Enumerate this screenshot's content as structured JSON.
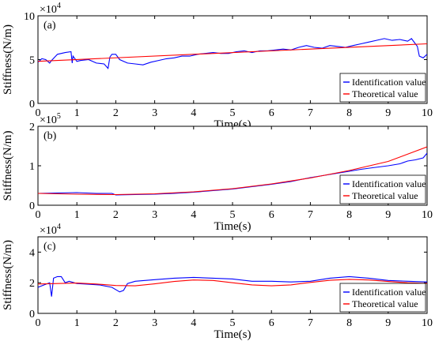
{
  "chart_data": [
    {
      "type": "line",
      "panel_label": "(a)",
      "xlabel": "Time(s)",
      "ylabel": "Stiffness(N/m)",
      "exponent_label": "×10",
      "exponent_power": "4",
      "xlim": [
        0,
        10
      ],
      "ylim": [
        0,
        10
      ],
      "x_ticks": [
        "0",
        "1",
        "2",
        "3",
        "4",
        "5",
        "6",
        "7",
        "8",
        "9",
        "10"
      ],
      "y_ticks": [
        "0",
        "5",
        "10"
      ],
      "y_tick_values": [
        0,
        5,
        10
      ],
      "legend": {
        "placement": "bottom-right"
      },
      "series": [
        {
          "name": "Identification value",
          "color": "#0000ff",
          "x": [
            0,
            0.1,
            0.2,
            0.3,
            0.35,
            0.5,
            0.7,
            0.85,
            0.88,
            0.9,
            1.0,
            1.1,
            1.3,
            1.5,
            1.7,
            1.8,
            1.85,
            1.9,
            2.0,
            2.1,
            2.3,
            2.5,
            2.7,
            2.9,
            3.1,
            3.3,
            3.5,
            3.7,
            3.9,
            4.1,
            4.3,
            4.5,
            4.7,
            4.9,
            5.1,
            5.3,
            5.5,
            5.7,
            5.9,
            6.1,
            6.3,
            6.5,
            6.7,
            6.9,
            7.1,
            7.3,
            7.5,
            7.7,
            7.9,
            8.1,
            8.3,
            8.5,
            8.7,
            8.9,
            9.1,
            9.3,
            9.5,
            9.6,
            9.7,
            9.75,
            9.8,
            9.9,
            10.0
          ],
          "y": [
            4.7,
            5.1,
            5.0,
            4.6,
            4.9,
            5.6,
            5.8,
            5.9,
            4.6,
            5.4,
            4.8,
            4.9,
            5.0,
            4.6,
            4.5,
            4.0,
            5.3,
            5.6,
            5.6,
            5.0,
            4.6,
            4.5,
            4.4,
            4.7,
            4.9,
            5.1,
            5.2,
            5.4,
            5.4,
            5.6,
            5.7,
            5.8,
            5.7,
            5.7,
            5.9,
            6.0,
            5.8,
            6.0,
            6.0,
            6.1,
            6.2,
            6.1,
            6.4,
            6.6,
            6.4,
            6.3,
            6.6,
            6.5,
            6.4,
            6.6,
            6.8,
            7.0,
            7.2,
            7.4,
            7.2,
            7.3,
            7.1,
            7.4,
            6.8,
            6.5,
            5.4,
            5.2,
            5.6
          ]
        },
        {
          "name": "Theoretical value",
          "color": "#ff0000",
          "x": [
            0,
            10
          ],
          "y": [
            4.8,
            6.8
          ]
        }
      ]
    },
    {
      "type": "line",
      "panel_label": "(b)",
      "xlabel": "Time(s)",
      "ylabel": "Stiffness(N/m)",
      "exponent_label": "×10",
      "exponent_power": "5",
      "xlim": [
        0,
        10
      ],
      "ylim": [
        0,
        2
      ],
      "x_ticks": [
        "0",
        "1",
        "2",
        "3",
        "4",
        "5",
        "6",
        "7",
        "8",
        "9",
        "10"
      ],
      "y_ticks": [
        "0",
        "1",
        "2"
      ],
      "y_tick_values": [
        0,
        1,
        2
      ],
      "legend": {
        "placement": "bottom-right"
      },
      "series": [
        {
          "name": "Identification value",
          "color": "#0000ff",
          "x": [
            0,
            0.5,
            1.0,
            1.5,
            1.9,
            2.0,
            2.5,
            3.0,
            3.5,
            4.0,
            4.5,
            5.0,
            5.5,
            6.0,
            6.5,
            7.0,
            7.5,
            8.0,
            8.3,
            8.6,
            9.0,
            9.3,
            9.5,
            9.7,
            9.9,
            10.0
          ],
          "y": [
            0.3,
            0.31,
            0.32,
            0.3,
            0.3,
            0.26,
            0.27,
            0.28,
            0.3,
            0.33,
            0.37,
            0.41,
            0.47,
            0.53,
            0.6,
            0.7,
            0.78,
            0.86,
            0.91,
            0.95,
            1.0,
            1.05,
            1.12,
            1.15,
            1.2,
            1.32
          ]
        },
        {
          "name": "Theoretical value",
          "color": "#ff0000",
          "x": [
            0,
            1,
            2,
            3,
            4,
            5,
            6,
            7,
            8,
            9,
            10
          ],
          "y": [
            0.3,
            0.28,
            0.27,
            0.29,
            0.34,
            0.42,
            0.54,
            0.69,
            0.88,
            1.11,
            1.48
          ]
        }
      ]
    },
    {
      "type": "line",
      "panel_label": "(c)",
      "xlabel": "Time(s)",
      "ylabel": "Stiffness(N/m)",
      "exponent_label": "×10",
      "exponent_power": "4",
      "xlim": [
        0,
        10
      ],
      "ylim": [
        0,
        5
      ],
      "x_ticks": [
        "0",
        "1",
        "2",
        "3",
        "4",
        "5",
        "6",
        "7",
        "8",
        "9",
        "10"
      ],
      "y_ticks": [
        "0",
        "2",
        "4"
      ],
      "y_tick_values": [
        0,
        2,
        4
      ],
      "legend": {
        "placement": "bottom-right"
      },
      "series": [
        {
          "name": "Identification value",
          "color": "#0000ff",
          "x": [
            0,
            0.2,
            0.3,
            0.35,
            0.4,
            0.5,
            0.6,
            0.7,
            0.8,
            1.0,
            1.3,
            1.6,
            1.9,
            2.1,
            2.2,
            2.3,
            2.5,
            3.0,
            3.5,
            4.0,
            4.5,
            5.0,
            5.5,
            6.0,
            6.5,
            7.0,
            7.5,
            8.0,
            8.5,
            9.0,
            9.5,
            10.0
          ],
          "y": [
            1.7,
            1.9,
            2.0,
            1.1,
            2.3,
            2.4,
            2.4,
            2.0,
            2.1,
            1.95,
            1.9,
            1.85,
            1.7,
            1.4,
            1.5,
            1.95,
            2.1,
            2.2,
            2.3,
            2.35,
            2.3,
            2.25,
            2.1,
            2.1,
            2.05,
            2.1,
            2.3,
            2.4,
            2.3,
            2.15,
            2.1,
            2.05
          ]
        },
        {
          "name": "Theoretical value",
          "color": "#ff0000",
          "x": [
            0,
            0.5,
            1.0,
            1.5,
            2.0,
            2.5,
            3.0,
            3.5,
            4.0,
            4.5,
            5.0,
            5.5,
            6.0,
            6.5,
            7.0,
            7.5,
            8.0,
            8.5,
            9.0,
            9.5,
            10.0
          ],
          "y": [
            1.92,
            1.95,
            1.98,
            1.92,
            1.82,
            1.8,
            1.93,
            2.08,
            2.18,
            2.15,
            2.0,
            1.86,
            1.8,
            1.86,
            2.02,
            2.16,
            2.22,
            2.18,
            2.08,
            2.0,
            1.96
          ]
        }
      ]
    }
  ]
}
